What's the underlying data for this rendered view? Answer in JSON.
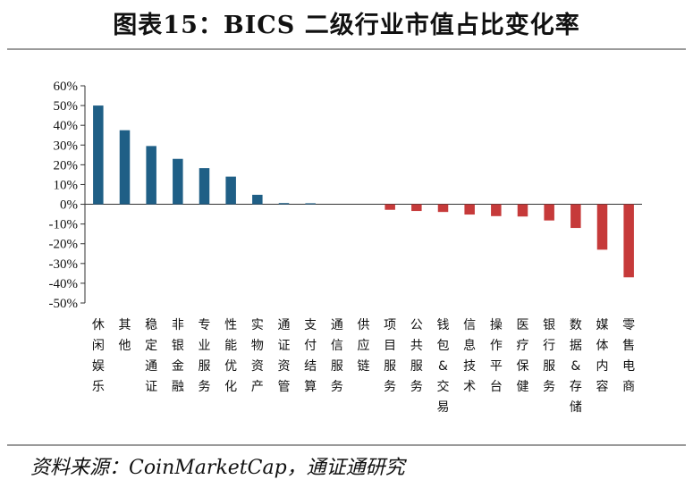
{
  "header": {
    "title": "图表15：BICS 二级行业市值占比变化率"
  },
  "footer": {
    "source": "资料来源：CoinMarketCap，通证通研究"
  },
  "colors": {
    "positive": "#1f5f86",
    "negative": "#c63a3a",
    "axis": "#333333"
  },
  "chart_data": {
    "type": "bar",
    "title": "图表15：BICS 二级行业市值占比变化率",
    "xlabel": "",
    "ylabel": "",
    "ylim": [
      -50,
      60
    ],
    "yticks": [
      60,
      50,
      40,
      30,
      20,
      10,
      0,
      -10,
      -20,
      -30,
      -40,
      -50
    ],
    "ytick_labels": [
      "60%",
      "50%",
      "40%",
      "30%",
      "20%",
      "10%",
      "0%",
      "-10%",
      "-20%",
      "-30%",
      "-40%",
      "-50%"
    ],
    "grid": false,
    "legend": "none",
    "categories": [
      "休闲娱乐",
      "其他",
      "稳定通证",
      "非银金融",
      "专业服务",
      "性能优化",
      "实物资产",
      "通证资管",
      "支付结算",
      "通信服务",
      "供应链",
      "项目服务",
      "公共服务",
      "钱包&交易",
      "信息技术",
      "操作平台",
      "医疗保健",
      "银行服务",
      "数据&存储",
      "媒体内容",
      "零售电商"
    ],
    "values": [
      50,
      37.5,
      29.5,
      23,
      18.3,
      14,
      4.8,
      0.6,
      0.5,
      0,
      0,
      -2.8,
      -3.4,
      -3.9,
      -5.2,
      -6,
      -6.2,
      -8.2,
      -12,
      -23,
      -37
    ]
  }
}
